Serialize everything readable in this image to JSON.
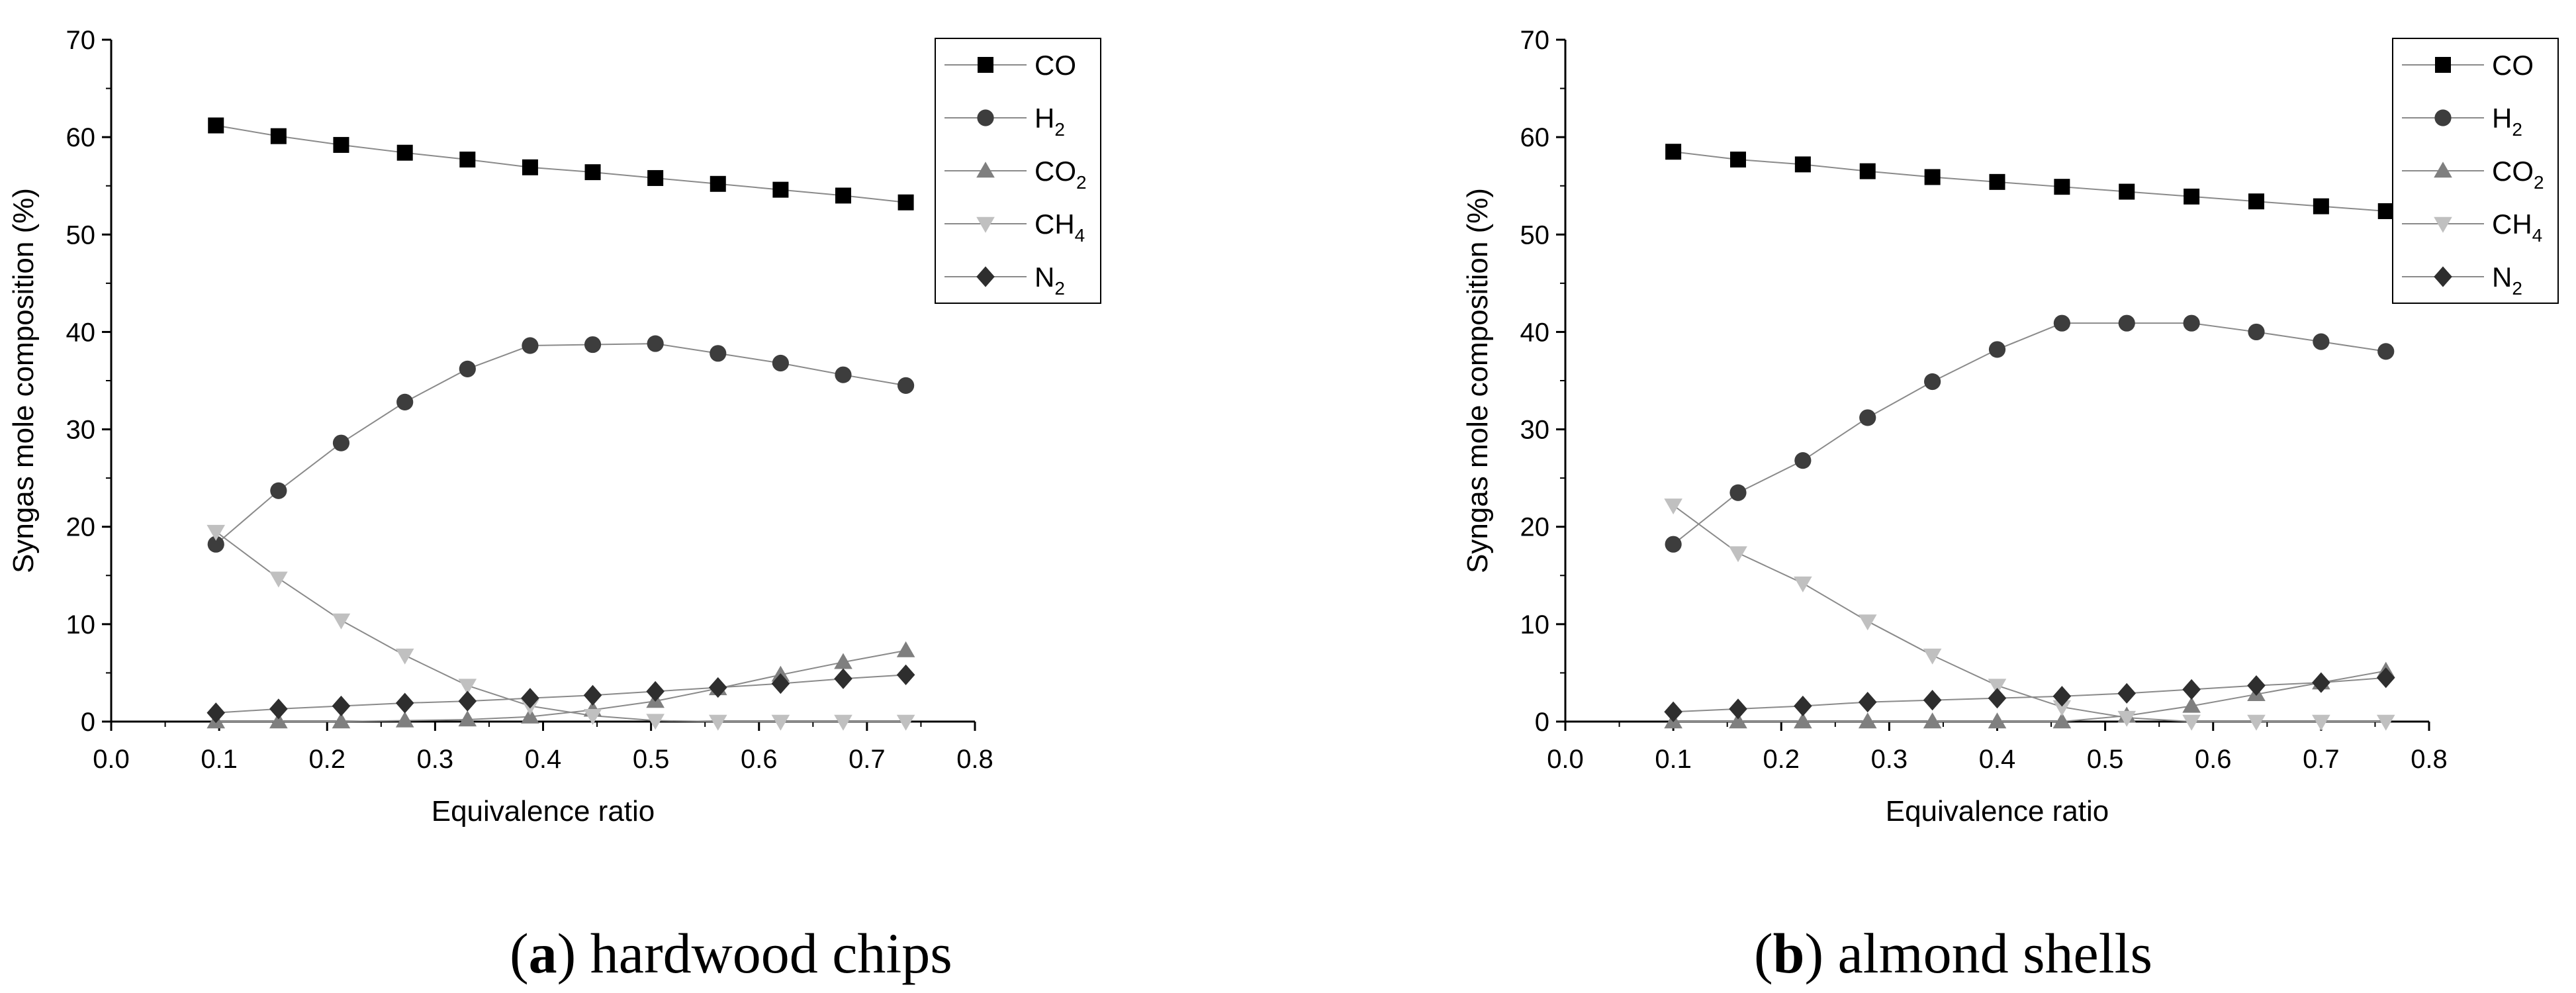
{
  "chart_data": [
    {
      "type": "line",
      "title": "",
      "xlabel": "Equivalence ratio",
      "ylabel": "Syngas mole composition (%)",
      "xlim": [
        0.0,
        0.8
      ],
      "ylim": [
        0,
        70
      ],
      "xticks": [
        "0.0",
        "0.1",
        "0.2",
        "0.3",
        "0.4",
        "0.5",
        "0.6",
        "0.7",
        "0.8"
      ],
      "yticks": [
        "0",
        "10",
        "20",
        "30",
        "40",
        "50",
        "60",
        "70"
      ],
      "legend_position": "top-right",
      "x": [
        0.097,
        0.155,
        0.213,
        0.272,
        0.33,
        0.388,
        0.446,
        0.504,
        0.562,
        0.62,
        0.678,
        0.736
      ],
      "series": [
        {
          "name": "CO",
          "base": "CO",
          "sub": "",
          "marker": "square",
          "color": "#000000",
          "values": [
            61.2,
            60.1,
            59.2,
            58.4,
            57.7,
            56.9,
            56.4,
            55.8,
            55.2,
            54.6,
            54.0,
            53.3
          ]
        },
        {
          "name": "H2",
          "base": "H",
          "sub": "2",
          "marker": "circle",
          "color": "#3d3d3d",
          "values": [
            18.2,
            23.7,
            28.6,
            32.8,
            36.2,
            38.6,
            38.7,
            38.8,
            37.8,
            36.8,
            35.6,
            34.5
          ]
        },
        {
          "name": "CO2",
          "base": "CO",
          "sub": "2",
          "marker": "triangle-up",
          "color": "#7f7f7f",
          "values": [
            0.0,
            0.0,
            0.0,
            0.1,
            0.2,
            0.5,
            1.2,
            2.1,
            3.4,
            4.8,
            6.1,
            7.3
          ]
        },
        {
          "name": "CH4",
          "base": "CH",
          "sub": "4",
          "marker": "triangle-down",
          "color": "#c0c0c0",
          "values": [
            19.5,
            14.7,
            10.4,
            6.8,
            3.7,
            1.6,
            0.6,
            0.1,
            0.0,
            0.0,
            0.0,
            0.0
          ]
        },
        {
          "name": "N2",
          "base": "N",
          "sub": "2",
          "marker": "diamond",
          "color": "#2e2e2e",
          "values": [
            0.9,
            1.3,
            1.6,
            1.9,
            2.1,
            2.4,
            2.7,
            3.1,
            3.5,
            3.9,
            4.4,
            4.8
          ]
        }
      ]
    },
    {
      "type": "line",
      "title": "",
      "xlabel": "Equivalence ratio",
      "ylabel": "Syngas mole composition (%)",
      "xlim": [
        0.0,
        0.8
      ],
      "ylim": [
        0,
        70
      ],
      "xticks": [
        "0.0",
        "0.1",
        "0.2",
        "0.3",
        "0.4",
        "0.5",
        "0.6",
        "0.7",
        "0.8"
      ],
      "yticks": [
        "0",
        "10",
        "20",
        "30",
        "40",
        "50",
        "60",
        "70"
      ],
      "legend_position": "top-right",
      "x": [
        0.1,
        0.16,
        0.22,
        0.28,
        0.34,
        0.4,
        0.46,
        0.52,
        0.58,
        0.64,
        0.7,
        0.76
      ],
      "series": [
        {
          "name": "CO",
          "base": "CO",
          "sub": "",
          "marker": "square",
          "color": "#000000",
          "values": [
            58.5,
            57.7,
            57.2,
            56.5,
            55.9,
            55.4,
            54.9,
            54.4,
            53.9,
            53.4,
            52.9,
            52.4
          ]
        },
        {
          "name": "H2",
          "base": "H",
          "sub": "2",
          "marker": "circle",
          "color": "#3d3d3d",
          "values": [
            18.2,
            23.5,
            26.8,
            31.2,
            34.9,
            38.2,
            40.9,
            40.9,
            40.9,
            40.0,
            39.0,
            38.0
          ]
        },
        {
          "name": "CO2",
          "base": "CO",
          "sub": "2",
          "marker": "triangle-up",
          "color": "#7f7f7f",
          "values": [
            0.0,
            0.0,
            0.0,
            0.0,
            0.0,
            0.0,
            0.0,
            0.6,
            1.6,
            2.8,
            4.0,
            5.2
          ]
        },
        {
          "name": "CH4",
          "base": "CH",
          "sub": "4",
          "marker": "triangle-down",
          "color": "#c0c0c0",
          "values": [
            22.2,
            17.3,
            14.2,
            10.3,
            6.8,
            3.7,
            1.5,
            0.4,
            0.0,
            0.0,
            0.0,
            0.0
          ]
        },
        {
          "name": "N2",
          "base": "N",
          "sub": "2",
          "marker": "diamond",
          "color": "#2e2e2e",
          "values": [
            1.0,
            1.3,
            1.6,
            2.0,
            2.2,
            2.4,
            2.6,
            2.9,
            3.3,
            3.7,
            4.0,
            4.5
          ]
        }
      ]
    }
  ],
  "captions": [
    {
      "label": "a",
      "text": ") hardwood chips"
    },
    {
      "label": "b",
      "text": ") almond shells"
    }
  ]
}
